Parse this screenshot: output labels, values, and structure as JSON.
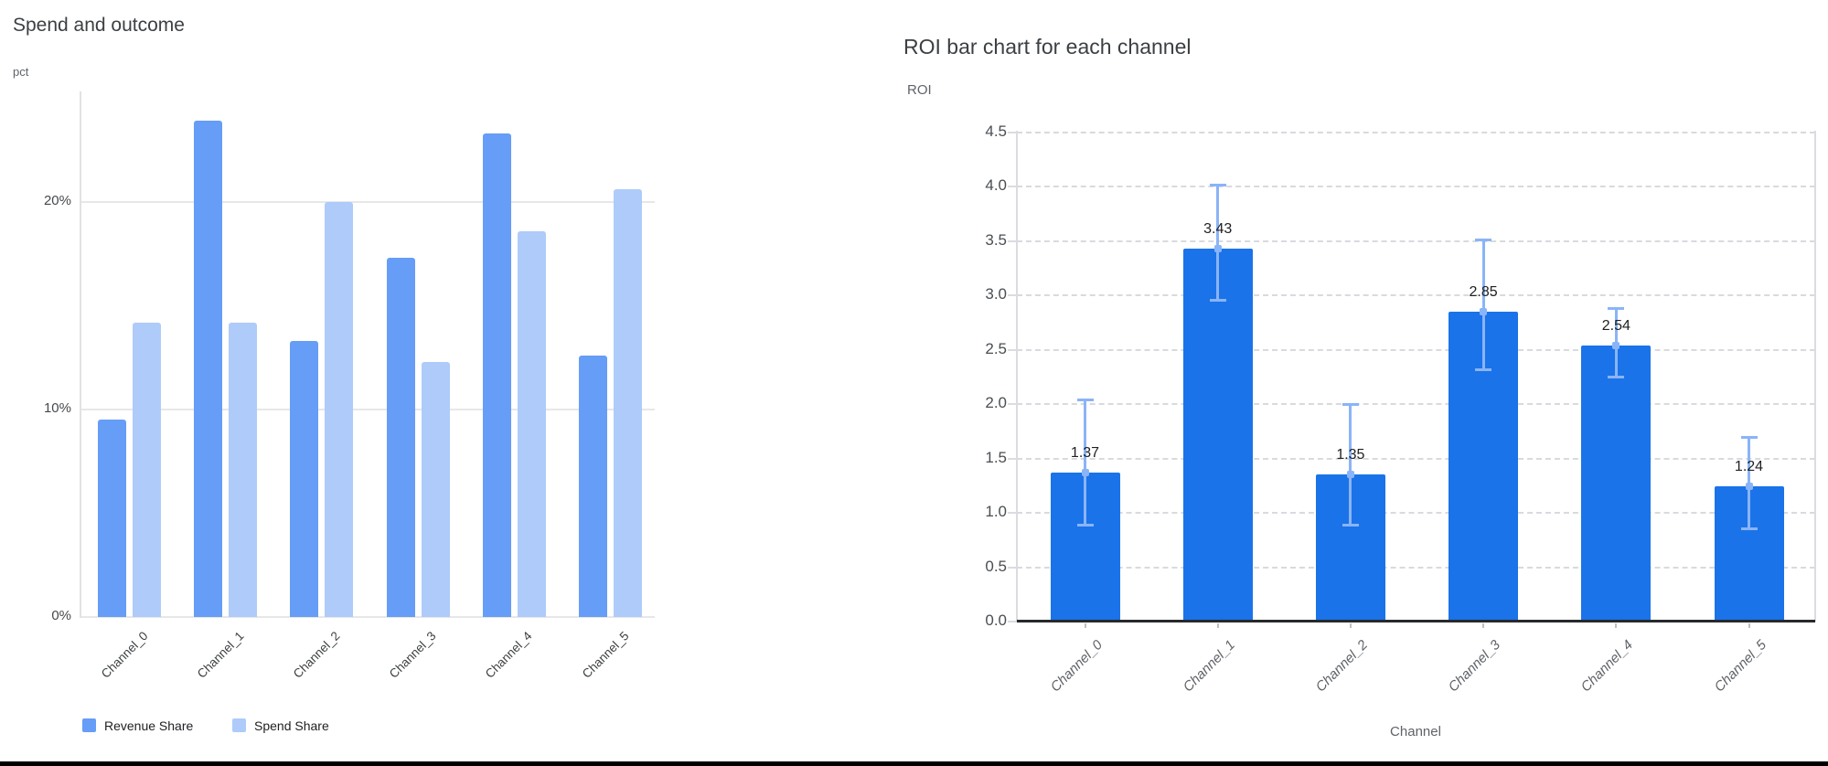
{
  "page": {
    "background": "#ffffff",
    "bottom_divider_color": "#000000"
  },
  "chart_data": [
    {
      "type": "bar",
      "title": "Spend and outcome",
      "axis_note": "pct",
      "categories": [
        "Channel_0",
        "Channel_1",
        "Channel_2",
        "Channel_3",
        "Channel_4",
        "Channel_5"
      ],
      "series": [
        {
          "name": "Revenue Share",
          "color": "#669df6",
          "values": [
            9.5,
            23.9,
            13.3,
            17.3,
            23.3,
            12.6
          ]
        },
        {
          "name": "Spend Share",
          "color": "#aecbfa",
          "values": [
            14.2,
            14.2,
            20.0,
            12.3,
            18.6,
            20.6
          ]
        }
      ],
      "yticks": [
        {
          "label": "0%",
          "value": 0
        },
        {
          "label": "10%",
          "value": 10
        },
        {
          "label": "20%",
          "value": 20
        }
      ],
      "ylim": [
        0,
        25
      ],
      "grid": "horizontal-solid",
      "gridline_color": "#e7e7e7",
      "legend_position": "bottom-left"
    },
    {
      "type": "bar",
      "title": "ROI bar chart for each channel",
      "ylabel": "ROI",
      "xlabel": "Channel",
      "categories": [
        "Channel_0",
        "Channel_1",
        "Channel_2",
        "Channel_3",
        "Channel_4",
        "Channel_5"
      ],
      "series": [
        {
          "name": "ROI",
          "color": "#1a73e8",
          "values": [
            1.37,
            3.43,
            1.35,
            2.85,
            2.54,
            1.24
          ]
        }
      ],
      "data_labels": [
        "1.37",
        "3.43",
        "1.35",
        "2.85",
        "2.54",
        "1.24"
      ],
      "error_bars": {
        "color": "#8ab4f8",
        "low": [
          0.88,
          2.95,
          0.88,
          2.31,
          2.24,
          0.85
        ],
        "high": [
          2.04,
          4.02,
          2.0,
          3.51,
          2.88,
          1.7
        ]
      },
      "yticks": [
        {
          "label": "0.0",
          "value": 0.0
        },
        {
          "label": "0.5",
          "value": 0.5
        },
        {
          "label": "1.0",
          "value": 1.0
        },
        {
          "label": "1.5",
          "value": 1.5
        },
        {
          "label": "2.0",
          "value": 2.0
        },
        {
          "label": "2.5",
          "value": 2.5
        },
        {
          "label": "3.0",
          "value": 3.0
        },
        {
          "label": "3.5",
          "value": 3.5
        },
        {
          "label": "4.0",
          "value": 4.0
        },
        {
          "label": "4.5",
          "value": 4.5
        }
      ],
      "ylim": [
        0,
        4.5
      ],
      "grid": "horizontal-dashed",
      "gridline_color": "#d8dade",
      "plot_border_color": "#dadce0",
      "baseline_color": "#27292b",
      "legend_position": "none"
    }
  ]
}
